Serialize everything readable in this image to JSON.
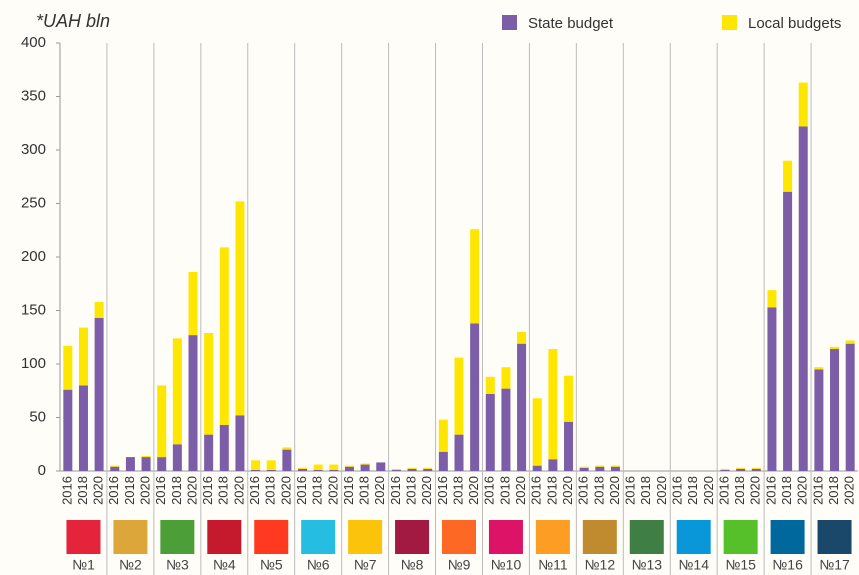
{
  "chart_data": {
    "type": "stacked_bar",
    "title": "*UAH bln",
    "groups": [
      "№1",
      "№2",
      "№3",
      "№4",
      "№5",
      "№6",
      "№7",
      "№8",
      "№9",
      "№10",
      "№11",
      "№12",
      "№13",
      "№14",
      "№15",
      "№16",
      "№17"
    ],
    "categories": [
      "2016",
      "2018",
      "2020",
      "2016",
      "2018",
      "2020",
      "2016",
      "2018",
      "2020",
      "2016",
      "2018",
      "2020",
      "2016",
      "2018",
      "2020",
      "2016",
      "2018",
      "2020",
      "2016",
      "2018",
      "2020",
      "2016",
      "2018",
      "2020",
      "2016",
      "2018",
      "2020",
      "2016",
      "2018",
      "2020",
      "2016",
      "2018",
      "2020",
      "2016",
      "2018",
      "2020",
      "2016",
      "2018",
      "2020",
      "2016",
      "2018",
      "2020",
      "2016",
      "2018",
      "2020",
      "2016",
      "2018",
      "2020",
      "2016",
      "2018",
      "2020"
    ],
    "series": [
      {
        "name": "State budget",
        "color": "#7b5ea7",
        "values": [
          76,
          80,
          143,
          4,
          13,
          13,
          13,
          25,
          127,
          34,
          43,
          52,
          1,
          1,
          20,
          2,
          1,
          1,
          4,
          6,
          8,
          1,
          2,
          2,
          18,
          34,
          138,
          72,
          77,
          119,
          5,
          11,
          46,
          3,
          4,
          4,
          0,
          0,
          0,
          0,
          0,
          0,
          1,
          2,
          2,
          153,
          261,
          322,
          95,
          114,
          119
        ]
      },
      {
        "name": "Local budgets",
        "color": "#ffe600",
        "values": [
          41,
          54,
          15,
          1,
          0,
          1,
          67,
          99,
          59,
          95,
          166,
          200,
          9,
          9,
          2,
          1,
          5,
          5,
          1,
          1,
          0,
          1,
          1,
          1,
          30,
          72,
          88,
          16,
          20,
          11,
          63,
          103,
          43,
          1,
          1,
          1,
          0,
          0,
          0,
          0,
          0,
          0,
          1,
          1,
          1,
          16,
          29,
          41,
          2,
          2,
          3
        ]
      }
    ],
    "ylim": [
      0,
      400
    ],
    "yticks": [
      0,
      50,
      100,
      150,
      200,
      250,
      300,
      350,
      400
    ],
    "grid": false,
    "legend": "top-right"
  }
}
